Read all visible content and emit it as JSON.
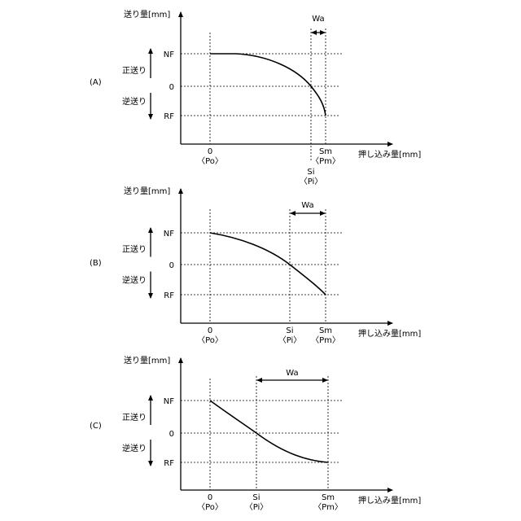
{
  "y_axis_label": "送り量[mm]",
  "x_axis_label": "押し込み量[mm]",
  "forward_label": "正送り",
  "reverse_label": "逆送り",
  "y_ticks": {
    "nf": "NF",
    "zero": "0",
    "rf": "RF"
  },
  "x_ticks": {
    "zero": "0",
    "po": "〈Po〉",
    "si": "Si",
    "pi": "〈Pi〉",
    "sm": "Sm",
    "pm": "〈Pm〉"
  },
  "width_label": "Wa",
  "panels": [
    {
      "label": "(A)"
    },
    {
      "label": "(B)"
    },
    {
      "label": "(C)"
    }
  ]
}
